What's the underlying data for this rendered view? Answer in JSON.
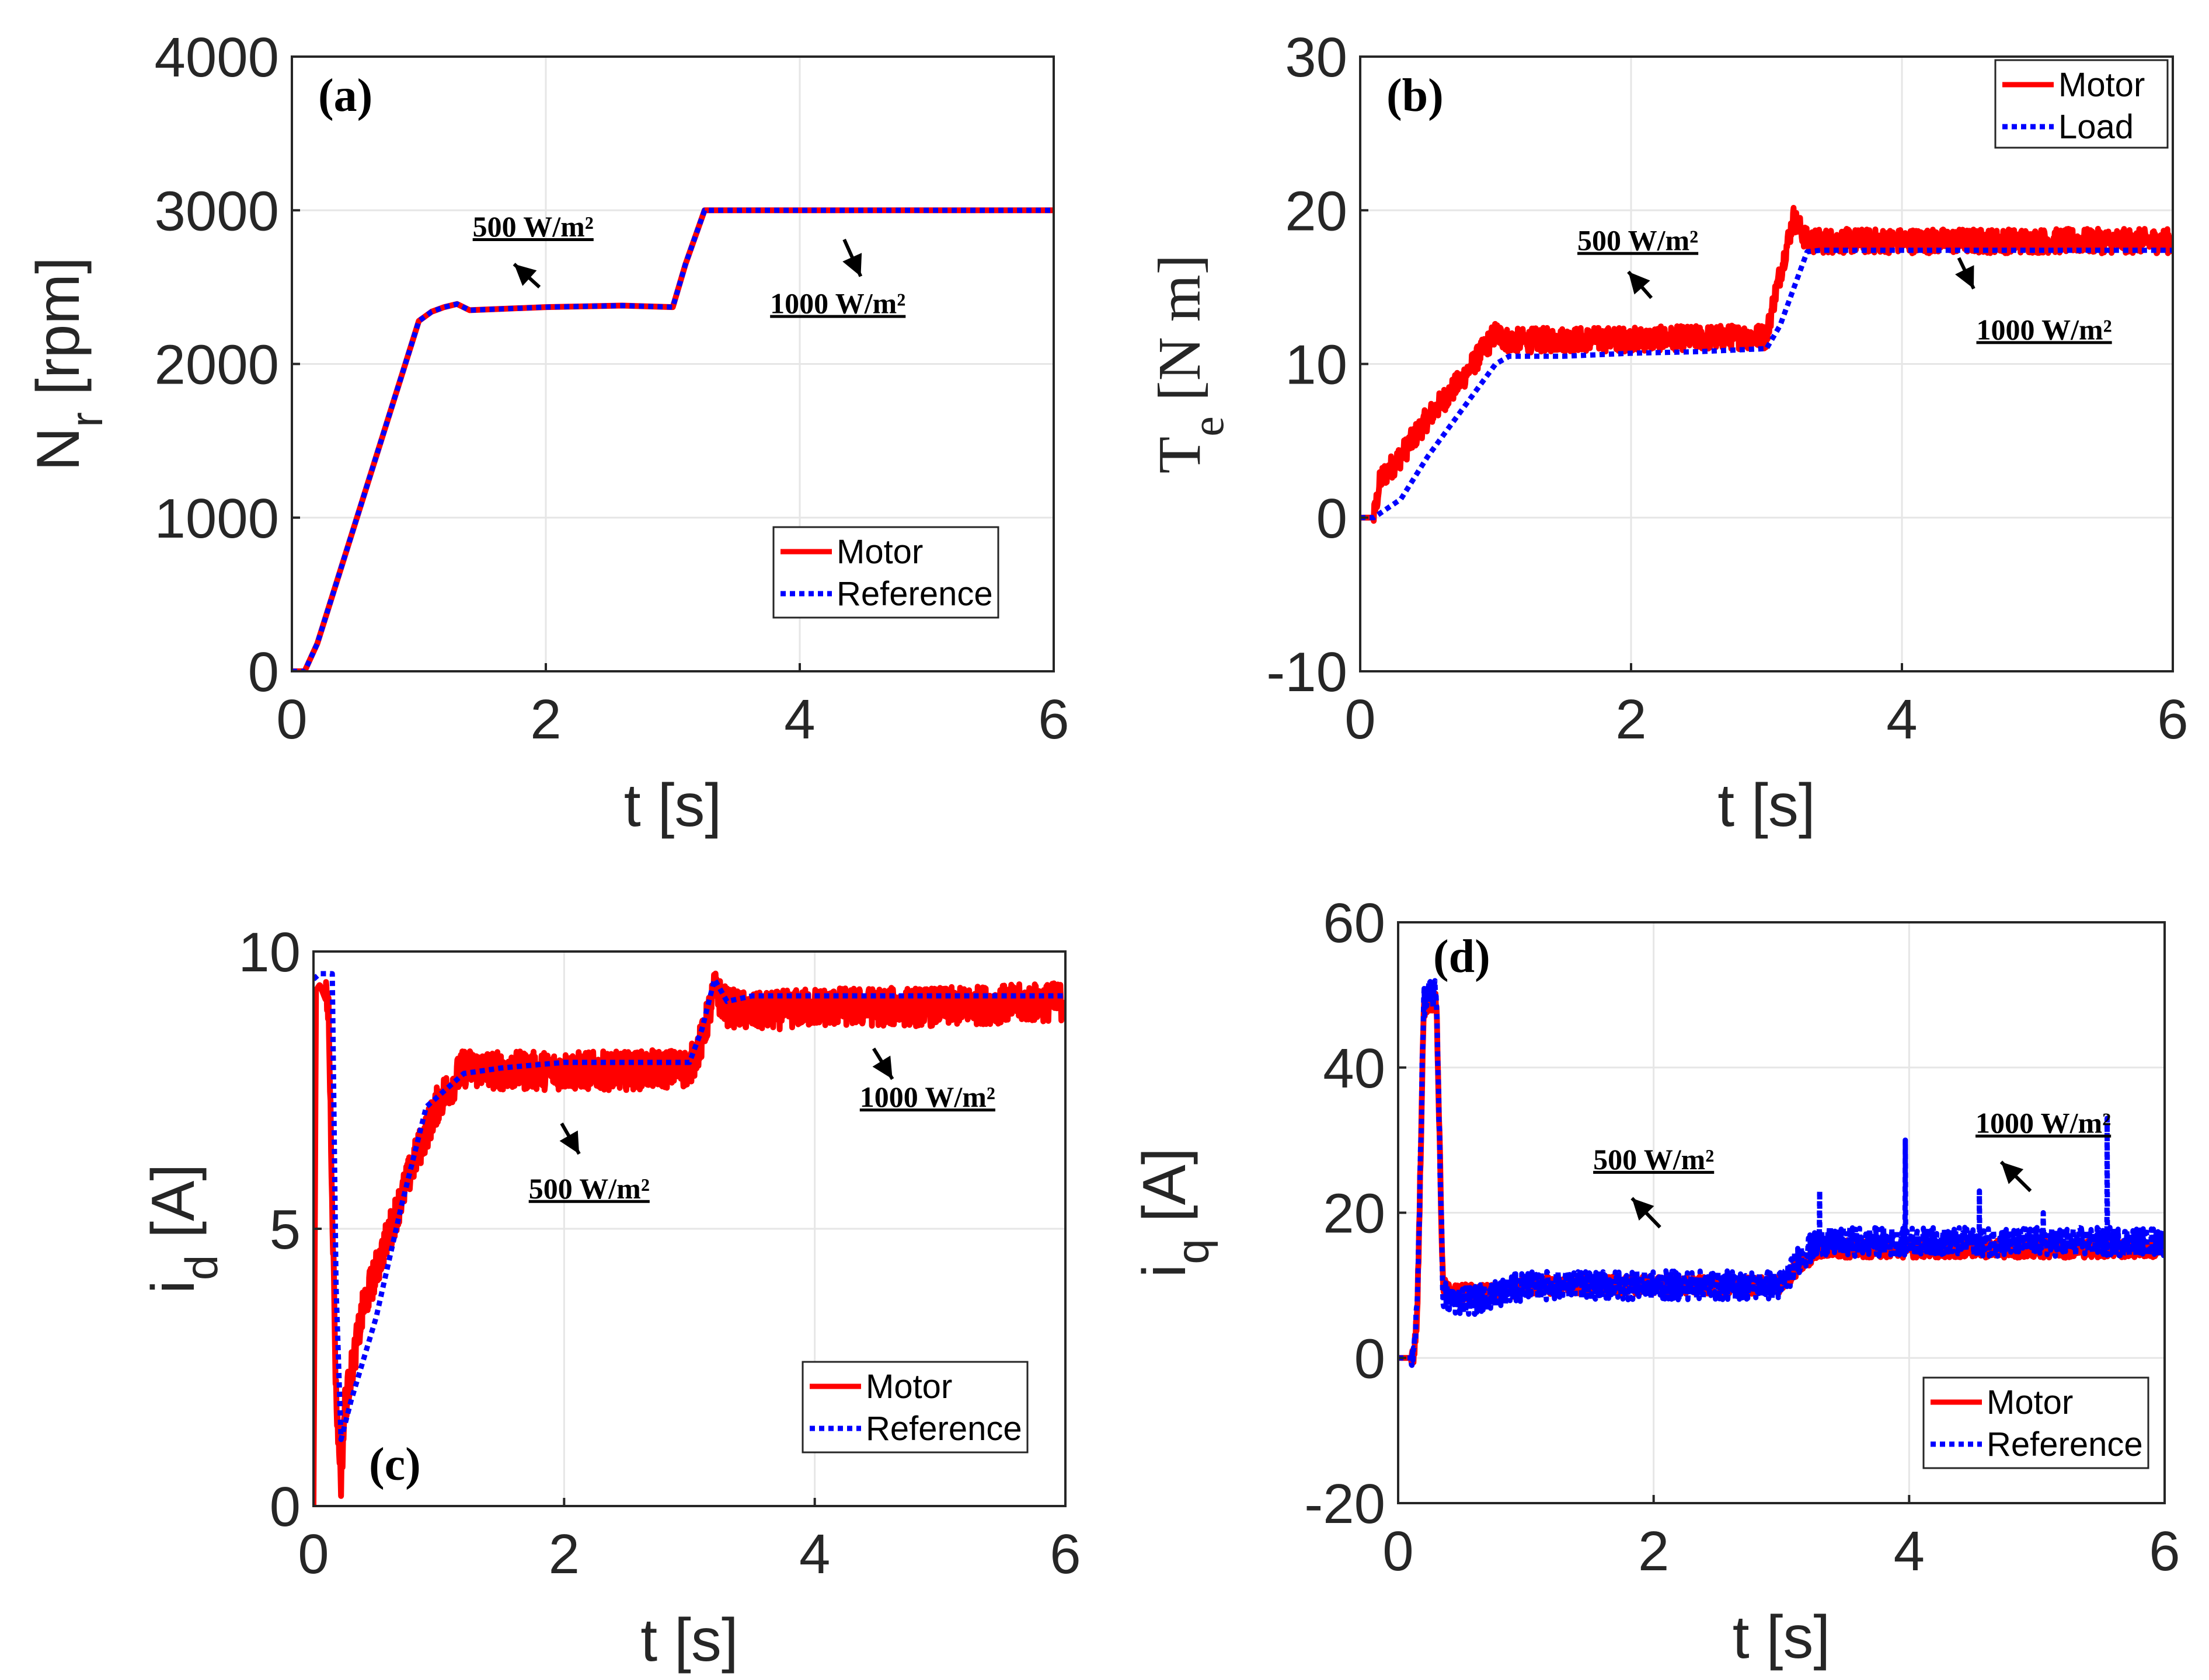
{
  "chart_data": [
    {
      "id": "a",
      "type": "line",
      "panel_label": "(a)",
      "xlabel": "t [s]",
      "ylabel_main": "N",
      "ylabel_sub": "r",
      "ylabel_unit": " [rpm]",
      "xlim": [
        0,
        6
      ],
      "ylim": [
        0,
        4000
      ],
      "xticks": [
        0,
        2,
        4,
        6
      ],
      "yticks": [
        0,
        1000,
        2000,
        3000,
        4000
      ],
      "legend": [
        "Motor",
        "Reference"
      ],
      "annotations": [
        {
          "text": "500 W/m²",
          "x": 1.9,
          "y": 2830,
          "arrow_from": [
            1.95,
            2500
          ],
          "arrow_to": [
            1.75,
            2650
          ]
        },
        {
          "text": "1000 W/m²",
          "x": 4.3,
          "y": 2330,
          "arrow_from": [
            4.35,
            2810
          ],
          "arrow_to": [
            4.48,
            2570
          ]
        }
      ],
      "series": [
        {
          "name": "Motor",
          "color": "#ff0000",
          "style": "solid",
          "x": [
            0,
            0.1,
            0.2,
            1.0,
            1.1,
            1.2,
            1.3,
            1.4,
            2.0,
            2.6,
            3.0,
            3.1,
            3.25,
            3.3,
            6.0
          ],
          "y": [
            0,
            0,
            180,
            2280,
            2340,
            2370,
            2390,
            2350,
            2370,
            2380,
            2370,
            2650,
            3000,
            3000,
            3000
          ]
        },
        {
          "name": "Reference",
          "color": "#0000ff",
          "style": "dotted",
          "x": [
            0,
            0.1,
            0.2,
            1.0,
            1.1,
            1.2,
            1.3,
            1.4,
            2.0,
            2.6,
            3.0,
            3.1,
            3.25,
            3.3,
            6.0
          ],
          "y": [
            0,
            0,
            180,
            2280,
            2340,
            2370,
            2390,
            2350,
            2370,
            2380,
            2370,
            2650,
            3000,
            3000,
            3000
          ]
        }
      ]
    },
    {
      "id": "b",
      "type": "line",
      "panel_label": "(b)",
      "xlabel": "t [s]",
      "ylabel_main": "T",
      "ylabel_sub": "e",
      "ylabel_unit": " [N m]",
      "xlim": [
        0,
        6
      ],
      "ylim": [
        -10,
        30
      ],
      "xticks": [
        0,
        2,
        4,
        6
      ],
      "yticks": [
        -10,
        0,
        10,
        20,
        30
      ],
      "legend": [
        "Motor",
        "Load"
      ],
      "annotations": [
        {
          "text": "500 W/m²",
          "x": 2.05,
          "y": 17.4,
          "arrow_from": [
            2.15,
            14.3
          ],
          "arrow_to": [
            1.98,
            16.0
          ]
        },
        {
          "text": "1000 W/m²",
          "x": 5.05,
          "y": 11.6,
          "arrow_from": [
            4.42,
            16.9
          ],
          "arrow_to": [
            4.53,
            14.9
          ]
        }
      ],
      "series": [
        {
          "name": "Motor",
          "color": "#ff0000",
          "style": "solid",
          "x": [
            0,
            0.1,
            0.15,
            0.3,
            0.5,
            0.75,
            1.0,
            1.1,
            1.5,
            2.0,
            2.5,
            3.0,
            3.05,
            3.2,
            3.3,
            3.4,
            4.0,
            5.0,
            6.0
          ],
          "y": [
            0,
            0,
            2.5,
            4.0,
            6.5,
            9.0,
            12.0,
            11.5,
            11.6,
            11.6,
            11.7,
            11.8,
            14.0,
            19.5,
            18.0,
            18.0,
            18.0,
            18.0,
            18.0
          ],
          "noise": 0.8
        },
        {
          "name": "Load",
          "color": "#0000ff",
          "style": "dotted",
          "x": [
            0,
            0.1,
            0.3,
            0.5,
            0.75,
            1.0,
            1.1,
            1.5,
            2.0,
            2.5,
            3.0,
            3.1,
            3.3,
            3.4,
            4.0,
            5.0,
            6.0
          ],
          "y": [
            0,
            0,
            1.2,
            4.0,
            7.0,
            10.0,
            10.5,
            10.5,
            10.7,
            10.8,
            11.0,
            12.5,
            17.3,
            17.4,
            17.4,
            17.4,
            17.4
          ]
        }
      ]
    },
    {
      "id": "c",
      "type": "line",
      "panel_label": "(c)",
      "xlabel": "t [s]",
      "ylabel_main": "i",
      "ylabel_sub": "d",
      "ylabel_unit": " [A]",
      "xlim": [
        0,
        6
      ],
      "ylim": [
        0,
        10
      ],
      "xticks": [
        0,
        2,
        4,
        6
      ],
      "yticks": [
        0,
        5,
        10
      ],
      "legend": [
        "Motor",
        "Reference"
      ],
      "annotations": [
        {
          "text": "500 W/m²",
          "x": 2.2,
          "y": 5.55,
          "arrow_from": [
            1.98,
            6.9
          ],
          "arrow_to": [
            2.12,
            6.35
          ]
        },
        {
          "text": "1000 W/m²",
          "x": 4.9,
          "y": 7.2,
          "arrow_from": [
            4.47,
            8.25
          ],
          "arrow_to": [
            4.62,
            7.7
          ]
        }
      ],
      "series": [
        {
          "name": "Motor",
          "color": "#ff0000",
          "style": "solid",
          "x": [
            0,
            0.02,
            0.05,
            0.12,
            0.18,
            0.22,
            0.25,
            0.3,
            0.4,
            0.6,
            0.8,
            1.0,
            1.2,
            1.5,
            2.0,
            2.5,
            3.0,
            3.1,
            3.2,
            3.3,
            3.5,
            4.0,
            5.0,
            6.0
          ],
          "y": [
            0,
            9.3,
            9.4,
            9.0,
            2.0,
            0.5,
            1.8,
            2.4,
            3.6,
            4.9,
            6.2,
            7.3,
            7.9,
            7.85,
            7.85,
            7.85,
            7.9,
            8.4,
            9.3,
            9.0,
            8.9,
            9.0,
            9.0,
            9.1
          ],
          "noise": 0.35
        },
        {
          "name": "Reference",
          "color": "#0000ff",
          "style": "dotted",
          "x": [
            0,
            0.05,
            0.15,
            0.18,
            0.22,
            0.3,
            0.5,
            0.7,
            0.9,
            1.2,
            1.5,
            2.0,
            2.5,
            3.0,
            3.1,
            3.2,
            3.3,
            3.5,
            4.0,
            5.0,
            6.0
          ],
          "y": [
            9.5,
            9.6,
            9.6,
            4.0,
            1.2,
            1.9,
            3.4,
            5.4,
            7.2,
            7.8,
            7.9,
            8.0,
            8.0,
            8.0,
            8.6,
            9.5,
            9.1,
            9.2,
            9.2,
            9.2,
            9.2
          ]
        }
      ]
    },
    {
      "id": "d",
      "type": "line",
      "panel_label": "(d)",
      "xlabel": "t [s]",
      "ylabel_main": "i",
      "ylabel_sub": "q",
      "ylabel_unit": " [A]",
      "xlim": [
        0,
        6
      ],
      "ylim": [
        -20,
        60
      ],
      "xticks": [
        0,
        2,
        4,
        6
      ],
      "yticks": [
        -20,
        0,
        20,
        40,
        60
      ],
      "legend": [
        "Motor",
        "Reference"
      ],
      "annotations": [
        {
          "text": "500 W/m²",
          "x": 2.0,
          "y": 26.0,
          "arrow_from": [
            2.05,
            18.0
          ],
          "arrow_to": [
            1.83,
            22.0
          ]
        },
        {
          "text": "1000 W/m²",
          "x": 5.05,
          "y": 31.0,
          "arrow_from": [
            4.95,
            23.0
          ],
          "arrow_to": [
            4.72,
            27.0
          ]
        }
      ],
      "series": [
        {
          "name": "Motor",
          "color": "#ff0000",
          "style": "solid",
          "x": [
            0,
            0.12,
            0.15,
            0.2,
            0.25,
            0.3,
            0.35,
            0.4,
            0.6,
            0.8,
            1.0,
            1.5,
            2.0,
            2.5,
            3.0,
            3.15,
            3.3,
            4.0,
            5.0,
            6.0
          ],
          "y": [
            0,
            0,
            6,
            48,
            49,
            49,
            10,
            9,
            9,
            9,
            10,
            10,
            10,
            10,
            10,
            13,
            15,
            15,
            15,
            15
          ],
          "noise": 1.2
        },
        {
          "name": "Reference",
          "color": "#0000ff",
          "style": "dotted",
          "x": [
            0,
            0.12,
            0.15,
            0.2,
            0.25,
            0.3,
            0.35,
            0.4,
            0.6,
            0.8,
            1.0,
            1.5,
            2.0,
            2.5,
            3.0,
            3.15,
            3.3,
            4.0,
            5.0,
            6.0
          ],
          "y": [
            0,
            0,
            7,
            49,
            50,
            50,
            9,
            8,
            8,
            9,
            10,
            10,
            10,
            10,
            10,
            14,
            16,
            16,
            16,
            16
          ],
          "noise": 2.0,
          "spikes": [
            [
              3.3,
              23
            ],
            [
              3.97,
              30
            ],
            [
              4.55,
              23
            ],
            [
              5.55,
              33
            ],
            [
              5.05,
              20
            ]
          ]
        }
      ]
    }
  ]
}
